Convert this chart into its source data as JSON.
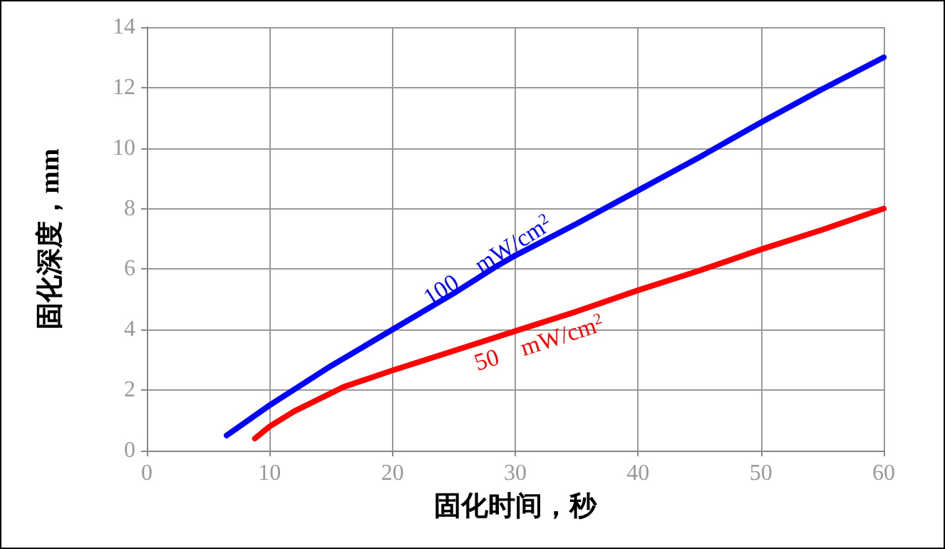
{
  "chart_data": {
    "type": "line",
    "xlabel": "固化时间，秒",
    "ylabel": "固化深度，mm",
    "xlim": [
      0,
      60
    ],
    "xticks": [
      0,
      10,
      20,
      30,
      40,
      50,
      60
    ],
    "ylim": [
      0,
      14
    ],
    "yticks": [
      0,
      2,
      4,
      6,
      8,
      10,
      12,
      14
    ],
    "grid": true,
    "marker": "none",
    "line_style": "solid",
    "series": [
      {
        "name": "100　mW/cm$^{2}$",
        "color": "#0000ff",
        "x": [
          6.5,
          10,
          15,
          20,
          25,
          28.5,
          30,
          35,
          40,
          45,
          50,
          55,
          60
        ],
        "values": [
          0.5,
          1.5,
          2.8,
          4.0,
          5.2,
          6.1,
          6.45,
          7.5,
          8.6,
          9.7,
          10.85,
          11.95,
          13
        ]
      },
      {
        "name": "50　mW/cm$^{2}$",
        "color": "#ff0000",
        "x": [
          8.8,
          10,
          12,
          16,
          20,
          25,
          30,
          35,
          40,
          45,
          50,
          55,
          60
        ],
        "values": [
          0.4,
          0.8,
          1.3,
          2.1,
          2.65,
          3.3,
          3.95,
          4.6,
          5.3,
          5.95,
          6.65,
          7.3,
          8
        ]
      }
    ]
  }
}
